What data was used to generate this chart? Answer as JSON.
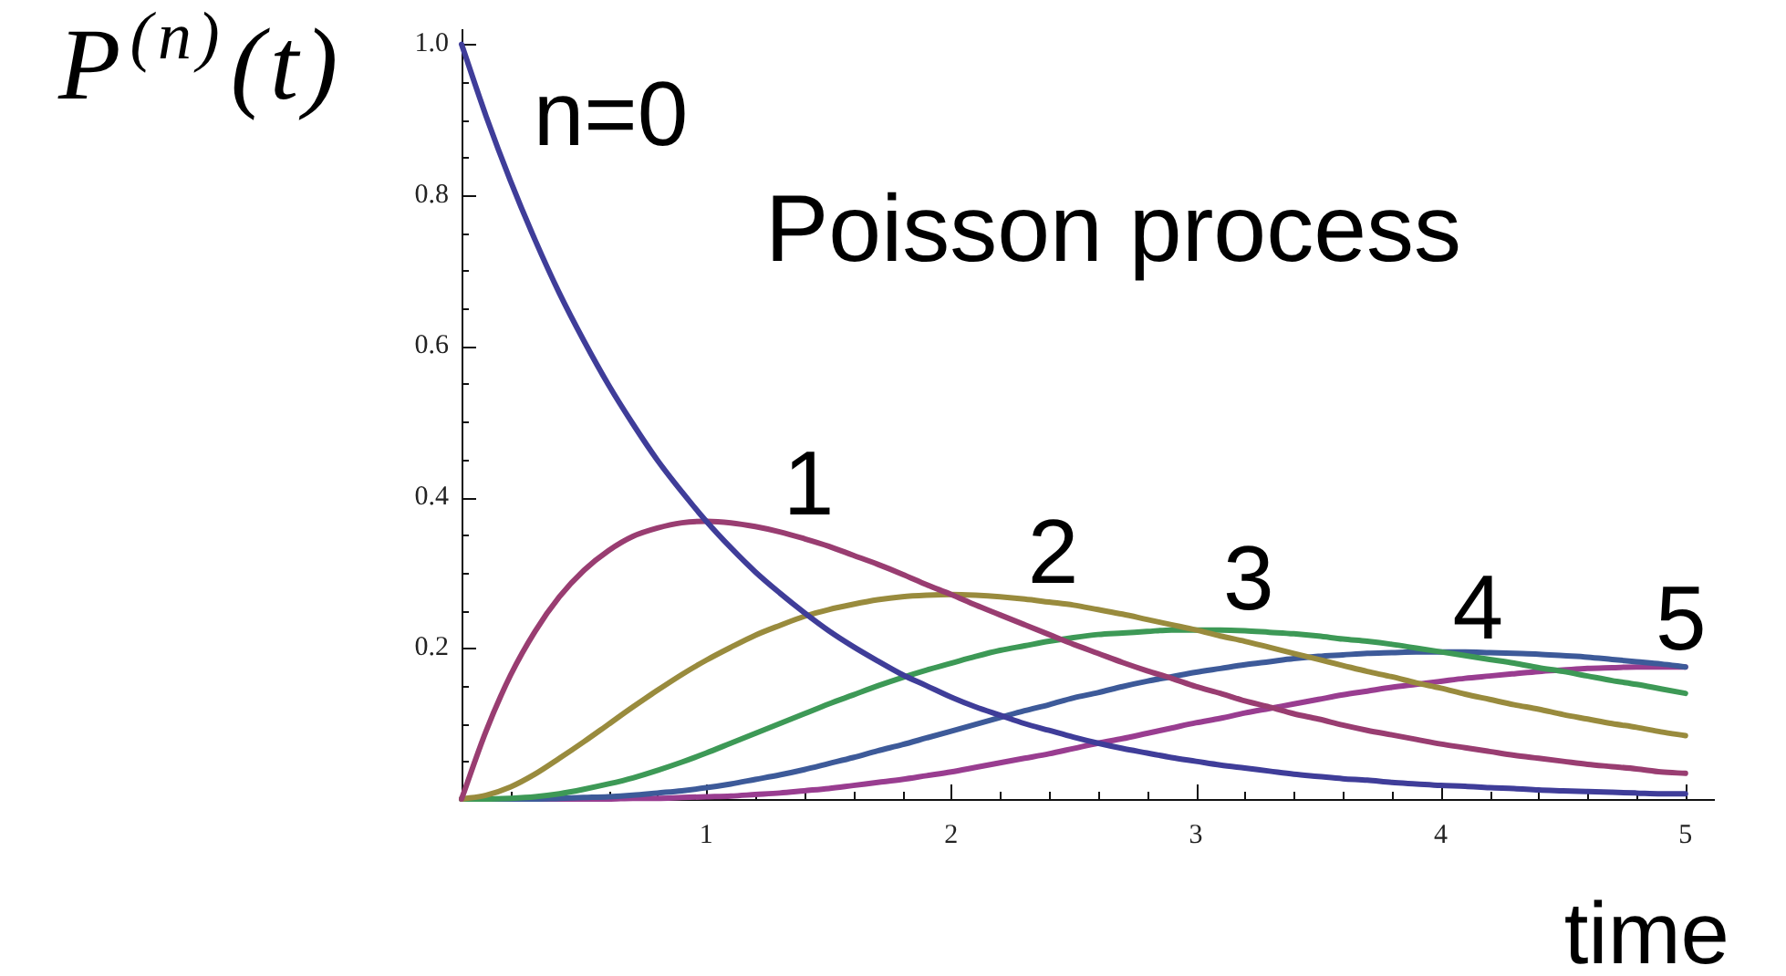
{
  "chart_data": {
    "type": "line",
    "title": "Poisson process",
    "xlabel": "time",
    "ylabel": "P$^{(n)}$(t)",
    "x": [
      0,
      0.1,
      0.2,
      0.3,
      0.4,
      0.5,
      0.6,
      0.7,
      0.8,
      0.9,
      1,
      1.1,
      1.2,
      1.3,
      1.4,
      1.5,
      1.6,
      1.7,
      1.8,
      1.9,
      2,
      2.1,
      2.2,
      2.3,
      2.4,
      2.5,
      2.6,
      2.7,
      2.8,
      2.9,
      3,
      3.1,
      3.2,
      3.3,
      3.4,
      3.5,
      3.6,
      3.7,
      3.8,
      3.9,
      4,
      4.1,
      4.2,
      4.3,
      4.4,
      4.5,
      4.6,
      4.7,
      4.8,
      4.9,
      5
    ],
    "series": [
      {
        "name": "n=0",
        "color": "#3f3d99",
        "values": [
          1,
          0.905,
          0.819,
          0.741,
          0.67,
          0.607,
          0.549,
          0.497,
          0.449,
          0.407,
          0.368,
          0.333,
          0.301,
          0.273,
          0.247,
          0.223,
          0.202,
          0.183,
          0.165,
          0.15,
          0.135,
          0.122,
          0.111,
          0.1,
          0.091,
          0.082,
          0.074,
          0.067,
          0.061,
          0.055,
          0.05,
          0.045,
          0.041,
          0.037,
          0.033,
          0.03,
          0.027,
          0.025,
          0.022,
          0.02,
          0.018,
          0.017,
          0.015,
          0.014,
          0.012,
          0.011,
          0.01,
          0.009,
          0.008,
          0.007,
          0.007
        ]
      },
      {
        "name": "1",
        "color": "#993d71",
        "values": [
          0,
          0.09,
          0.164,
          0.222,
          0.268,
          0.303,
          0.329,
          0.348,
          0.359,
          0.366,
          0.368,
          0.366,
          0.361,
          0.354,
          0.345,
          0.335,
          0.323,
          0.311,
          0.298,
          0.284,
          0.271,
          0.257,
          0.244,
          0.231,
          0.218,
          0.205,
          0.193,
          0.181,
          0.17,
          0.16,
          0.149,
          0.14,
          0.13,
          0.122,
          0.113,
          0.106,
          0.098,
          0.091,
          0.085,
          0.079,
          0.073,
          0.068,
          0.063,
          0.058,
          0.054,
          0.05,
          0.046,
          0.043,
          0.04,
          0.036,
          0.034
        ]
      },
      {
        "name": "2",
        "color": "#998b3d",
        "values": [
          0,
          0.005,
          0.016,
          0.033,
          0.054,
          0.076,
          0.099,
          0.122,
          0.144,
          0.165,
          0.184,
          0.201,
          0.217,
          0.23,
          0.242,
          0.251,
          0.258,
          0.264,
          0.268,
          0.27,
          0.271,
          0.27,
          0.268,
          0.265,
          0.261,
          0.257,
          0.251,
          0.245,
          0.238,
          0.231,
          0.224,
          0.216,
          0.209,
          0.201,
          0.193,
          0.185,
          0.177,
          0.169,
          0.162,
          0.154,
          0.147,
          0.139,
          0.132,
          0.125,
          0.119,
          0.112,
          0.106,
          0.1,
          0.095,
          0.089,
          0.084
        ]
      },
      {
        "name": "3",
        "color": "#3d9956",
        "values": [
          0,
          0,
          0.001,
          0.003,
          0.007,
          0.013,
          0.02,
          0.028,
          0.038,
          0.049,
          0.061,
          0.074,
          0.087,
          0.1,
          0.113,
          0.126,
          0.138,
          0.15,
          0.161,
          0.171,
          0.18,
          0.189,
          0.197,
          0.203,
          0.209,
          0.214,
          0.218,
          0.22,
          0.222,
          0.224,
          0.224,
          0.224,
          0.223,
          0.221,
          0.219,
          0.216,
          0.212,
          0.209,
          0.205,
          0.2,
          0.195,
          0.19,
          0.185,
          0.18,
          0.174,
          0.169,
          0.163,
          0.157,
          0.152,
          0.146,
          0.14
        ]
      },
      {
        "name": "4",
        "color": "#3d5a99",
        "values": [
          0,
          0,
          0,
          0,
          0.001,
          0.002,
          0.003,
          0.005,
          0.008,
          0.011,
          0.015,
          0.02,
          0.026,
          0.032,
          0.039,
          0.047,
          0.055,
          0.064,
          0.072,
          0.081,
          0.09,
          0.099,
          0.108,
          0.117,
          0.125,
          0.134,
          0.141,
          0.149,
          0.156,
          0.162,
          0.168,
          0.173,
          0.178,
          0.182,
          0.186,
          0.189,
          0.191,
          0.193,
          0.194,
          0.195,
          0.195,
          0.195,
          0.194,
          0.193,
          0.192,
          0.19,
          0.188,
          0.185,
          0.182,
          0.179,
          0.175
        ]
      },
      {
        "name": "5",
        "color": "#993d90",
        "values": [
          0,
          0,
          0,
          0,
          0,
          0,
          0,
          0.001,
          0.001,
          0.002,
          0.003,
          0.004,
          0.006,
          0.008,
          0.011,
          0.014,
          0.018,
          0.022,
          0.026,
          0.031,
          0.036,
          0.042,
          0.048,
          0.054,
          0.06,
          0.067,
          0.074,
          0.08,
          0.087,
          0.094,
          0.101,
          0.107,
          0.114,
          0.12,
          0.126,
          0.132,
          0.138,
          0.143,
          0.148,
          0.152,
          0.156,
          0.16,
          0.163,
          0.166,
          0.169,
          0.171,
          0.173,
          0.174,
          0.175,
          0.175,
          0.175
        ]
      }
    ],
    "xlim": [
      0,
      5.12
    ],
    "ylim": [
      0,
      1.02
    ],
    "xticks": [
      {
        "value": 0.2,
        "label": null
      },
      {
        "value": 0.4,
        "label": null
      },
      {
        "value": 0.6,
        "label": null
      },
      {
        "value": 0.8,
        "label": null
      },
      1,
      {
        "value": 1.2,
        "label": null
      },
      {
        "value": 1.4,
        "label": null
      },
      {
        "value": 1.6,
        "label": null
      },
      {
        "value": 1.8,
        "label": null
      },
      2,
      {
        "value": 2.2,
        "label": null
      },
      {
        "value": 2.4,
        "label": null
      },
      {
        "value": 2.6,
        "label": null
      },
      {
        "value": 2.8,
        "label": null
      },
      3,
      {
        "value": 3.2,
        "label": null
      },
      {
        "value": 3.4,
        "label": null
      },
      {
        "value": 3.6,
        "label": null
      },
      {
        "value": 3.8,
        "label": null
      },
      4,
      {
        "value": 4.2,
        "label": null
      },
      {
        "value": 4.4,
        "label": null
      },
      {
        "value": 4.6,
        "label": null
      },
      {
        "value": 4.8,
        "label": null
      },
      5
    ],
    "yticks": [
      {
        "value": 0.05,
        "label": null
      },
      {
        "value": 0.1,
        "label": null
      },
      {
        "value": 0.15,
        "label": null
      },
      0.2,
      {
        "value": 0.25,
        "label": null
      },
      {
        "value": 0.3,
        "label": null
      },
      {
        "value": 0.35,
        "label": null
      },
      0.4,
      {
        "value": 0.45,
        "label": null
      },
      {
        "value": 0.5,
        "label": null
      },
      {
        "value": 0.55,
        "label": null
      },
      0.6,
      {
        "value": 0.65,
        "label": null
      },
      {
        "value": 0.7,
        "label": null
      },
      {
        "value": 0.75,
        "label": null
      },
      0.8,
      {
        "value": 0.85,
        "label": null
      },
      {
        "value": 0.9,
        "label": null
      },
      {
        "value": 0.95,
        "label": null
      },
      {
        "value": 1,
        "label": "1.0"
      }
    ],
    "marker": "none"
  }
}
